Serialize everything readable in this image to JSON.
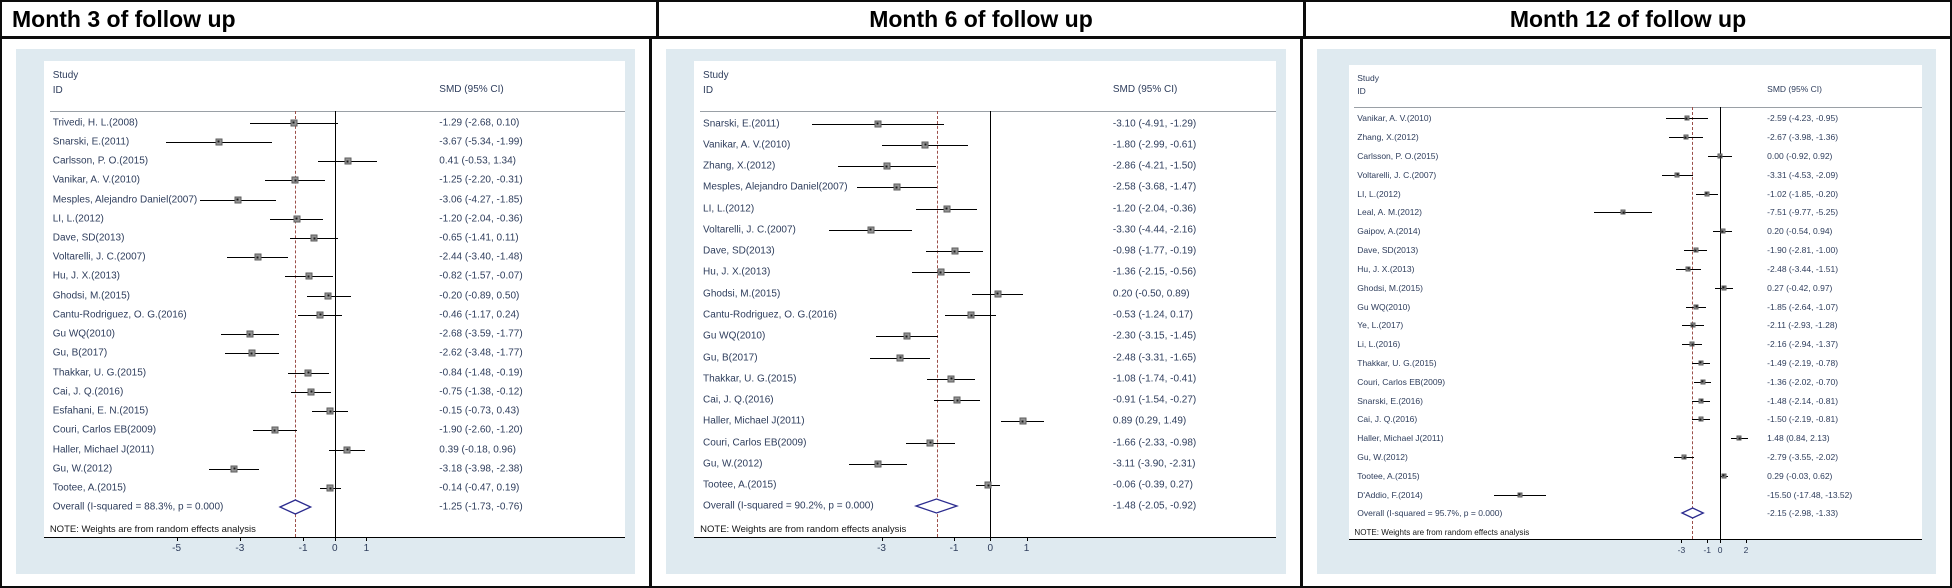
{
  "chart_data": [
    {
      "type": "scatter",
      "chart_kind": "forest-plot",
      "title": "Month 3 of follow up",
      "col_headers": {
        "study_line1": "Study",
        "study_line2": "ID",
        "effect": "SMD (95% CI)"
      },
      "note": "NOTE: Weights are from random effects analysis",
      "xlabel": "",
      "ylabel": "",
      "xlim": [
        -6.6,
        2.0
      ],
      "zero_line": 0,
      "x_ticks": [
        {
          "v": -5,
          "label": "-5"
        },
        {
          "v": -3,
          "label": "-3"
        },
        {
          "v": -1,
          "label": "-1"
        },
        {
          "v": 0,
          "label": "0"
        },
        {
          "v": 1,
          "label": "1"
        }
      ],
      "studies": [
        {
          "name": "Trivedi, H. L.(2008)",
          "smd": -1.29,
          "lo": -2.68,
          "hi": 0.1,
          "display": "-1.29 (-2.68, 0.10)"
        },
        {
          "name": "Snarski, E.(2011)",
          "smd": -3.67,
          "lo": -5.34,
          "hi": -1.99,
          "display": "-3.67 (-5.34, -1.99)"
        },
        {
          "name": "Carlsson, P. O.(2015)",
          "smd": 0.41,
          "lo": -0.53,
          "hi": 1.34,
          "display": "0.41 (-0.53, 1.34)"
        },
        {
          "name": "Vanikar, A. V.(2010)",
          "smd": -1.25,
          "lo": -2.2,
          "hi": -0.31,
          "display": "-1.25 (-2.20, -0.31)"
        },
        {
          "name": "Mesples, Alejandro Daniel(2007)",
          "smd": -3.06,
          "lo": -4.27,
          "hi": -1.85,
          "display": "-3.06 (-4.27, -1.85)"
        },
        {
          "name": "LI, L.(2012)",
          "smd": -1.2,
          "lo": -2.04,
          "hi": -0.36,
          "display": "-1.20 (-2.04, -0.36)"
        },
        {
          "name": "Dave, SD(2013)",
          "smd": -0.65,
          "lo": -1.41,
          "hi": 0.11,
          "display": "-0.65 (-1.41, 0.11)"
        },
        {
          "name": "Voltarelli, J. C.(2007)",
          "smd": -2.44,
          "lo": -3.4,
          "hi": -1.48,
          "display": "-2.44 (-3.40, -1.48)"
        },
        {
          "name": "Hu, J. X.(2013)",
          "smd": -0.82,
          "lo": -1.57,
          "hi": -0.07,
          "display": "-0.82 (-1.57, -0.07)"
        },
        {
          "name": "Ghodsi, M.(2015)",
          "smd": -0.2,
          "lo": -0.89,
          "hi": 0.5,
          "display": "-0.20 (-0.89, 0.50)"
        },
        {
          "name": "Cantu-Rodriguez, O. G.(2016)",
          "smd": -0.46,
          "lo": -1.17,
          "hi": 0.24,
          "display": "-0.46 (-1.17, 0.24)"
        },
        {
          "name": "Gu WQ(2010)",
          "smd": -2.68,
          "lo": -3.59,
          "hi": -1.77,
          "display": "-2.68 (-3.59, -1.77)"
        },
        {
          "name": "Gu, B(2017)",
          "smd": -2.62,
          "lo": -3.48,
          "hi": -1.77,
          "display": "-2.62 (-3.48, -1.77)"
        },
        {
          "name": "Thakkar, U. G.(2015)",
          "smd": -0.84,
          "lo": -1.48,
          "hi": -0.19,
          "display": "-0.84 (-1.48, -0.19)"
        },
        {
          "name": "Cai, J. Q.(2016)",
          "smd": -0.75,
          "lo": -1.38,
          "hi": -0.12,
          "display": "-0.75 (-1.38, -0.12)"
        },
        {
          "name": "Esfahani, E. N.(2015)",
          "smd": -0.15,
          "lo": -0.73,
          "hi": 0.43,
          "display": "-0.15 (-0.73, 0.43)"
        },
        {
          "name": "Couri, Carlos EB(2009)",
          "smd": -1.9,
          "lo": -2.6,
          "hi": -1.2,
          "display": "-1.90 (-2.60, -1.20)"
        },
        {
          "name": "Haller, Michael J(2011)",
          "smd": 0.39,
          "lo": -0.18,
          "hi": 0.96,
          "display": "0.39 (-0.18, 0.96)"
        },
        {
          "name": "Gu, W.(2012)",
          "smd": -3.18,
          "lo": -3.98,
          "hi": -2.38,
          "display": "-3.18 (-3.98, -2.38)"
        },
        {
          "name": "Tootee, A.(2015)",
          "smd": -0.14,
          "lo": -0.47,
          "hi": 0.19,
          "display": "-0.14 (-0.47, 0.19)"
        }
      ],
      "overall": {
        "label": "Overall  (I-squared = 88.3%, p = 0.000)",
        "smd": -1.25,
        "lo": -1.73,
        "hi": -0.76,
        "display": "-1.25 (-1.73, -0.76)"
      }
    },
    {
      "type": "scatter",
      "chart_kind": "forest-plot",
      "title": "Month 6 of follow up",
      "col_headers": {
        "study_line1": "Study",
        "study_line2": "ID",
        "effect": "SMD (95% CI)"
      },
      "note": "NOTE: Weights are from random effects analysis",
      "xlabel": "",
      "ylabel": "",
      "xlim": [
        -5.6,
        2.1
      ],
      "zero_line": 0,
      "x_ticks": [
        {
          "v": -3,
          "label": "-3"
        },
        {
          "v": -1,
          "label": "-1"
        },
        {
          "v": 0,
          "label": "0"
        },
        {
          "v": 1,
          "label": "1"
        }
      ],
      "studies": [
        {
          "name": "Snarski, E.(2011)",
          "smd": -3.1,
          "lo": -4.91,
          "hi": -1.29,
          "display": "-3.10 (-4.91, -1.29)"
        },
        {
          "name": "Vanikar, A. V.(2010)",
          "smd": -1.8,
          "lo": -2.99,
          "hi": -0.61,
          "display": "-1.80 (-2.99, -0.61)"
        },
        {
          "name": "Zhang, X.(2012)",
          "smd": -2.86,
          "lo": -4.21,
          "hi": -1.5,
          "display": "-2.86 (-4.21, -1.50)"
        },
        {
          "name": "Mesples, Alejandro Daniel(2007)",
          "smd": -2.58,
          "lo": -3.68,
          "hi": -1.47,
          "display": "-2.58 (-3.68, -1.47)"
        },
        {
          "name": "LI, L.(2012)",
          "smd": -1.2,
          "lo": -2.04,
          "hi": -0.36,
          "display": "-1.20 (-2.04, -0.36)"
        },
        {
          "name": "Voltarelli, J. C.(2007)",
          "smd": -3.3,
          "lo": -4.44,
          "hi": -2.16,
          "display": "-3.30 (-4.44, -2.16)"
        },
        {
          "name": "Dave, SD(2013)",
          "smd": -0.98,
          "lo": -1.77,
          "hi": -0.19,
          "display": "-0.98 (-1.77, -0.19)"
        },
        {
          "name": "Hu, J. X.(2013)",
          "smd": -1.36,
          "lo": -2.15,
          "hi": -0.56,
          "display": "-1.36 (-2.15, -0.56)"
        },
        {
          "name": "Ghodsi, M.(2015)",
          "smd": 0.2,
          "lo": -0.5,
          "hi": 0.89,
          "display": "0.20 (-0.50, 0.89)"
        },
        {
          "name": "Cantu-Rodriguez, O. G.(2016)",
          "smd": -0.53,
          "lo": -1.24,
          "hi": 0.17,
          "display": "-0.53 (-1.24, 0.17)"
        },
        {
          "name": "Gu WQ(2010)",
          "smd": -2.3,
          "lo": -3.15,
          "hi": -1.45,
          "display": "-2.30 (-3.15, -1.45)"
        },
        {
          "name": "Gu, B(2017)",
          "smd": -2.48,
          "lo": -3.31,
          "hi": -1.65,
          "display": "-2.48 (-3.31, -1.65)"
        },
        {
          "name": "Thakkar, U. G.(2015)",
          "smd": -1.08,
          "lo": -1.74,
          "hi": -0.41,
          "display": "-1.08 (-1.74, -0.41)"
        },
        {
          "name": "Cai, J. Q.(2016)",
          "smd": -0.91,
          "lo": -1.54,
          "hi": -0.27,
          "display": "-0.91 (-1.54, -0.27)"
        },
        {
          "name": "Haller, Michael J(2011)",
          "smd": 0.89,
          "lo": 0.29,
          "hi": 1.49,
          "display": "0.89 (0.29, 1.49)"
        },
        {
          "name": "Couri, Carlos EB(2009)",
          "smd": -1.66,
          "lo": -2.33,
          "hi": -0.98,
          "display": "-1.66 (-2.33, -0.98)"
        },
        {
          "name": "Gu, W.(2012)",
          "smd": -3.11,
          "lo": -3.9,
          "hi": -2.31,
          "display": "-3.11 (-3.90, -2.31)"
        },
        {
          "name": "Tootee, A.(2015)",
          "smd": -0.06,
          "lo": -0.39,
          "hi": 0.27,
          "display": "-0.06 (-0.39, 0.27)"
        }
      ],
      "overall": {
        "label": "Overall  (I-squared = 90.2%, p = 0.000)",
        "smd": -1.48,
        "lo": -2.05,
        "hi": -0.92,
        "display": "-1.48 (-2.05, -0.92)"
      }
    },
    {
      "type": "scatter",
      "chart_kind": "forest-plot",
      "title": "Month 12 of follow up",
      "col_headers": {
        "study_line1": "Study",
        "study_line2": "ID",
        "effect": "SMD (95% CI)"
      },
      "note": "NOTE: Weights are from random effects analysis",
      "xlabel": "",
      "ylabel": "",
      "xlim": [
        -19.0,
        3.2
      ],
      "zero_line": 0,
      "x_ticks": [
        {
          "v": -3,
          "label": "-3"
        },
        {
          "v": -1,
          "label": "-1"
        },
        {
          "v": 0,
          "label": "0"
        },
        {
          "v": 2,
          "label": "2"
        }
      ],
      "studies": [
        {
          "name": "Vanikar, A. V.(2010)",
          "smd": -2.59,
          "lo": -4.23,
          "hi": -0.95,
          "display": "-2.59 (-4.23, -0.95)"
        },
        {
          "name": "Zhang, X.(2012)",
          "smd": -2.67,
          "lo": -3.98,
          "hi": -1.36,
          "display": "-2.67 (-3.98, -1.36)"
        },
        {
          "name": "Carlsson, P. O.(2015)",
          "smd": 0.0,
          "lo": -0.92,
          "hi": 0.92,
          "display": "0.00 (-0.92, 0.92)"
        },
        {
          "name": "Voltarelli, J. C.(2007)",
          "smd": -3.31,
          "lo": -4.53,
          "hi": -2.09,
          "display": "-3.31 (-4.53, -2.09)"
        },
        {
          "name": "LI, L.(2012)",
          "smd": -1.02,
          "lo": -1.85,
          "hi": -0.2,
          "display": "-1.02 (-1.85, -0.20)"
        },
        {
          "name": "Leal, A. M.(2012)",
          "smd": -7.51,
          "lo": -9.77,
          "hi": -5.25,
          "display": "-7.51 (-9.77, -5.25)"
        },
        {
          "name": "Gaipov, A.(2014)",
          "smd": 0.2,
          "lo": -0.54,
          "hi": 0.94,
          "display": "0.20 (-0.54, 0.94)"
        },
        {
          "name": "Dave, SD(2013)",
          "smd": -1.9,
          "lo": -2.81,
          "hi": -1.0,
          "display": "-1.90 (-2.81, -1.00)"
        },
        {
          "name": "Hu, J. X.(2013)",
          "smd": -2.48,
          "lo": -3.44,
          "hi": -1.51,
          "display": "-2.48 (-3.44, -1.51)"
        },
        {
          "name": "Ghodsi, M.(2015)",
          "smd": 0.27,
          "lo": -0.42,
          "hi": 0.97,
          "display": "0.27 (-0.42, 0.97)"
        },
        {
          "name": "Gu WQ(2010)",
          "smd": -1.85,
          "lo": -2.64,
          "hi": -1.07,
          "display": "-1.85 (-2.64, -1.07)"
        },
        {
          "name": "Ye, L.(2017)",
          "smd": -2.11,
          "lo": -2.93,
          "hi": -1.28,
          "display": "-2.11 (-2.93, -1.28)"
        },
        {
          "name": "Li, L.(2016)",
          "smd": -2.16,
          "lo": -2.94,
          "hi": -1.37,
          "display": "-2.16 (-2.94, -1.37)"
        },
        {
          "name": "Thakkar, U. G.(2015)",
          "smd": -1.49,
          "lo": -2.19,
          "hi": -0.78,
          "display": "-1.49 (-2.19, -0.78)"
        },
        {
          "name": "Couri, Carlos EB(2009)",
          "smd": -1.36,
          "lo": -2.02,
          "hi": -0.7,
          "display": "-1.36 (-2.02, -0.70)"
        },
        {
          "name": "Snarski, E.(2016)",
          "smd": -1.48,
          "lo": -2.14,
          "hi": -0.81,
          "display": "-1.48 (-2.14, -0.81)"
        },
        {
          "name": "Cai, J. Q.(2016)",
          "smd": -1.5,
          "lo": -2.19,
          "hi": -0.81,
          "display": "-1.50 (-2.19, -0.81)"
        },
        {
          "name": "Haller, Michael J(2011)",
          "smd": 1.48,
          "lo": 0.84,
          "hi": 2.13,
          "display": "1.48 (0.84, 2.13)"
        },
        {
          "name": "Gu, W.(2012)",
          "smd": -2.79,
          "lo": -3.55,
          "hi": -2.02,
          "display": "-2.79 (-3.55, -2.02)"
        },
        {
          "name": "Tootee, A.(2015)",
          "smd": 0.29,
          "lo": -0.03,
          "hi": 0.62,
          "display": "0.29 (-0.03, 0.62)"
        },
        {
          "name": "D'Addio, F.(2014)",
          "smd": -15.5,
          "lo": -17.48,
          "hi": -13.52,
          "display": "-15.50 (-17.48, -13.52)"
        }
      ],
      "overall": {
        "label": "Overall  (I-squared = 95.7%, p = 0.000)",
        "smd": -2.15,
        "lo": -2.98,
        "hi": -1.33,
        "display": "-2.15 (-2.98, -1.33)"
      }
    }
  ],
  "colors": {
    "plot_background": "#dfeaf0",
    "dashed_overall_line": "#9b4f49",
    "zero_line": "#000000",
    "diamond_outline": "#2c2c8f",
    "marker_fill": "#949494",
    "text": "#2e3d5c"
  }
}
